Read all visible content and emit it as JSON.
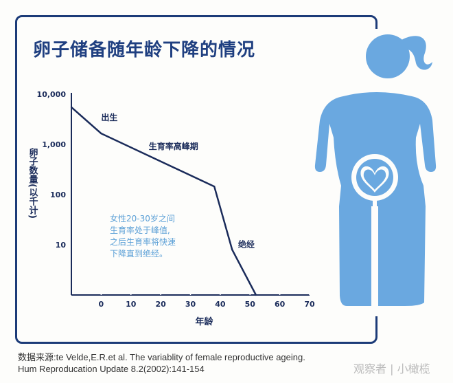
{
  "title": "卵子储备随年龄下降的情况",
  "chart_data": {
    "type": "line",
    "title": "卵子储备随年龄下降的情况",
    "xlabel": "年龄",
    "ylabel": "卵子数量(以千计)",
    "yscale": "log",
    "xlim": [
      -10,
      70
    ],
    "ylim": [
      1,
      10000
    ],
    "x_ticks": [
      0,
      10,
      20,
      30,
      40,
      50,
      60,
      70
    ],
    "y_ticks": [
      10,
      100,
      1000,
      10000
    ],
    "y_tick_labels": [
      "10",
      "100",
      "1,000",
      "10,000"
    ],
    "series": [
      {
        "x": [
          -10,
          0,
          38,
          44,
          52
        ],
        "values": [
          5500,
          1650,
          145,
          8,
          1
        ]
      }
    ],
    "annotations": [
      {
        "text": "出生",
        "x": 0,
        "y": 3000
      },
      {
        "text": "生育率高峰期",
        "x": 16,
        "y": 800
      },
      {
        "text": "绝经",
        "x": 46,
        "y": 9
      }
    ],
    "note": [
      "女性20-30岁之间",
      "生育率处于峰值,",
      "之后生育率将快速",
      "下降直到绝经。"
    ],
    "line_color": "#1a2b5a",
    "grid": false
  },
  "source": {
    "line1": "数据来源:te Velde,E.R.et al. The variablity of female reproductive ageing.",
    "line2": "Hum Reproducation Update 8.2(2002):141-154"
  },
  "watermark": "观察者 | 小橄榄",
  "colors": {
    "frame": "#1c3b78",
    "figure": "#6aa8e0",
    "note": "#5a9fd6"
  }
}
